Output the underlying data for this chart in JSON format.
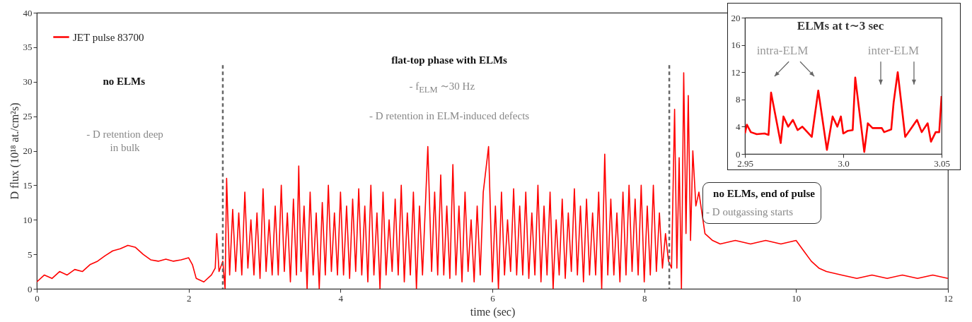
{
  "chart_data": [
    {
      "type": "line",
      "xlabel": "time (sec)",
      "ylabel": "D flux (10¹⁸ at./cm²s)",
      "xlim": [
        0,
        12
      ],
      "xticks": [
        0,
        2,
        4,
        6,
        8,
        10,
        12
      ],
      "ylim": [
        0,
        40
      ],
      "yticks": [
        0,
        5,
        10,
        15,
        20,
        25,
        30,
        35,
        40
      ],
      "legend": "top left",
      "ref_lines": [
        {
          "axis": "x",
          "value": 2.45,
          "color": "#666666",
          "line_style": "dashed"
        },
        {
          "axis": "x",
          "value": 8.33,
          "color": "#666666",
          "line_style": "dashed"
        }
      ],
      "annotations": [
        "no ELMs",
        "- D retention deep in bulk",
        "flat-top phase with ELMs",
        "- f$_{ELM}$ ∼30 Hz",
        "- D retention in ELM-induced defects",
        "no ELMs, end of pulse",
        "- D outgassing starts"
      ],
      "x": [
        0,
        0.1,
        0.2,
        0.3,
        0.4,
        0.5,
        0.6,
        0.7,
        0.8,
        0.9,
        1.0,
        1.1,
        1.2,
        1.3,
        1.4,
        1.5,
        1.6,
        1.7,
        1.8,
        1.9,
        2.0,
        2.05,
        2.1,
        2.2,
        2.3,
        2.35,
        2.37,
        2.4,
        2.45,
        2.48,
        2.5,
        2.54,
        2.58,
        2.62,
        2.66,
        2.7,
        2.74,
        2.78,
        2.82,
        2.86,
        2.9,
        2.94,
        2.98,
        3.02,
        3.06,
        3.1,
        3.14,
        3.18,
        3.22,
        3.26,
        3.3,
        3.34,
        3.38,
        3.42,
        3.45,
        3.48,
        3.52,
        3.56,
        3.6,
        3.64,
        3.68,
        3.72,
        3.76,
        3.8,
        3.84,
        3.88,
        3.92,
        3.96,
        4.0,
        4.04,
        4.08,
        4.12,
        4.16,
        4.2,
        4.24,
        4.28,
        4.32,
        4.36,
        4.4,
        4.44,
        4.48,
        4.52,
        4.56,
        4.6,
        4.64,
        4.68,
        4.72,
        4.76,
        4.8,
        4.84,
        4.88,
        4.92,
        4.96,
        5.0,
        5.04,
        5.08,
        5.15,
        5.2,
        5.24,
        5.28,
        5.32,
        5.36,
        5.4,
        5.44,
        5.48,
        5.52,
        5.56,
        5.6,
        5.64,
        5.68,
        5.72,
        5.76,
        5.8,
        5.84,
        5.88,
        5.95,
        6.0,
        6.04,
        6.08,
        6.12,
        6.16,
        6.2,
        6.24,
        6.28,
        6.32,
        6.36,
        6.4,
        6.44,
        6.48,
        6.52,
        6.56,
        6.6,
        6.64,
        6.68,
        6.72,
        6.76,
        6.8,
        6.84,
        6.88,
        6.92,
        6.96,
        7.0,
        7.04,
        7.08,
        7.12,
        7.16,
        7.2,
        7.24,
        7.28,
        7.32,
        7.36,
        7.4,
        7.44,
        7.48,
        7.52,
        7.56,
        7.6,
        7.64,
        7.68,
        7.72,
        7.76,
        7.8,
        7.84,
        7.88,
        7.92,
        7.96,
        8.0,
        8.04,
        8.08,
        8.12,
        8.16,
        8.2,
        8.24,
        8.28,
        8.32,
        8.36,
        8.4,
        8.43,
        8.46,
        8.49,
        8.52,
        8.55,
        8.58,
        8.61,
        8.64,
        8.68,
        8.72,
        8.8,
        8.9,
        9.0,
        9.2,
        9.4,
        9.6,
        9.8,
        10.0,
        10.1,
        10.2,
        10.3,
        10.4,
        10.6,
        10.8,
        11.0,
        11.2,
        11.4,
        11.6,
        11.8,
        12.0
      ],
      "series": [
        {
          "name": "JET pulse 83700",
          "color": "#ff0000",
          "values": [
            1,
            2,
            1.5,
            2.5,
            2,
            2.8,
            2.5,
            3.5,
            4,
            4.8,
            5.5,
            5.8,
            6.3,
            6,
            5,
            4.2,
            4,
            4.3,
            4,
            4.2,
            4.5,
            3.5,
            1.5,
            1,
            2,
            3,
            8,
            2.5,
            4,
            0,
            16,
            2,
            11.5,
            2.5,
            11,
            2,
            14,
            3,
            10,
            2,
            11,
            1.5,
            14.5,
            2.5,
            10,
            2,
            12,
            2,
            15,
            2.5,
            11,
            1,
            13,
            2,
            17.8,
            2.5,
            12,
            0,
            14,
            2,
            11,
            0,
            12.5,
            2,
            15,
            2.5,
            11,
            2,
            14,
            2,
            12,
            1.5,
            13,
            2.5,
            14.5,
            2,
            12,
            1,
            15,
            2,
            11,
            0,
            14,
            2,
            10,
            2.5,
            13,
            2,
            15,
            1,
            11,
            2,
            14,
            0,
            12,
            2,
            20.6,
            2.5,
            14,
            2,
            16.5,
            2,
            12,
            1.5,
            18,
            2,
            12,
            1,
            14,
            2.5,
            10,
            1,
            12,
            2,
            14,
            20.6,
            1,
            12,
            0,
            14,
            2,
            10,
            2.5,
            14.5,
            2,
            12,
            2,
            14,
            1.5,
            11,
            2,
            15,
            1,
            12,
            2,
            14,
            0,
            10,
            2,
            13,
            1.5,
            11,
            2.5,
            14.5,
            2,
            12,
            1,
            13,
            2,
            11,
            2,
            14,
            0,
            19.5,
            2,
            13,
            2,
            11,
            1,
            14,
            2,
            15,
            2.5,
            13,
            2,
            15,
            1,
            12,
            2,
            15,
            2.5,
            11,
            3,
            8,
            4,
            3,
            26,
            3,
            19,
            0,
            31.3,
            8,
            28,
            7,
            20,
            12,
            14,
            8,
            7,
            6.5,
            7,
            6.5,
            7,
            6.5,
            7,
            5.5,
            4,
            3,
            2.5,
            2,
            1.5,
            2,
            1.5,
            2,
            1.5,
            2,
            1.5
          ]
        }
      ]
    },
    {
      "type": "line",
      "title": "ELMs at t∼3 sec",
      "xlim": [
        2.95,
        3.05
      ],
      "xticks": [
        2.95,
        {
          "value": 3,
          "label": "3.0"
        },
        3.05
      ],
      "ylim": [
        0,
        20
      ],
      "yticks": [
        0,
        4,
        8,
        12,
        16,
        20
      ],
      "annotations": [
        "intra-ELM",
        "inter-ELM"
      ],
      "x": [
        2.95,
        2.951,
        2.953,
        2.956,
        2.96,
        2.962,
        2.9633,
        2.9682,
        2.9696,
        2.972,
        2.9744,
        2.9768,
        2.9792,
        2.984,
        2.9873,
        2.9917,
        2.9946,
        2.997,
        2.9988,
        3.0,
        3.0024,
        3.0048,
        3.0061,
        3.0107,
        3.0125,
        3.0149,
        3.0196,
        3.0208,
        3.0244,
        3.0256,
        3.0277,
        3.0315,
        3.0351,
        3.0375,
        3.0399,
        3.0429,
        3.0446,
        3.047,
        3.0488,
        3.05
      ],
      "series": [
        {
          "color": "#ff0000",
          "values": [
            3,
            4.3,
            3.2,
            2.9,
            3,
            2.8,
            9,
            1.6,
            5.5,
            4,
            5,
            3.5,
            4,
            2.5,
            9.3,
            0.6,
            5.5,
            4,
            5.5,
            3,
            3.4,
            3.5,
            11.2,
            0.3,
            4.5,
            3.8,
            3.8,
            3.2,
            3.6,
            7.5,
            12,
            2.5,
            4,
            5,
            3.2,
            4.5,
            1.8,
            3.2,
            3.2,
            8.5
          ]
        }
      ]
    }
  ]
}
